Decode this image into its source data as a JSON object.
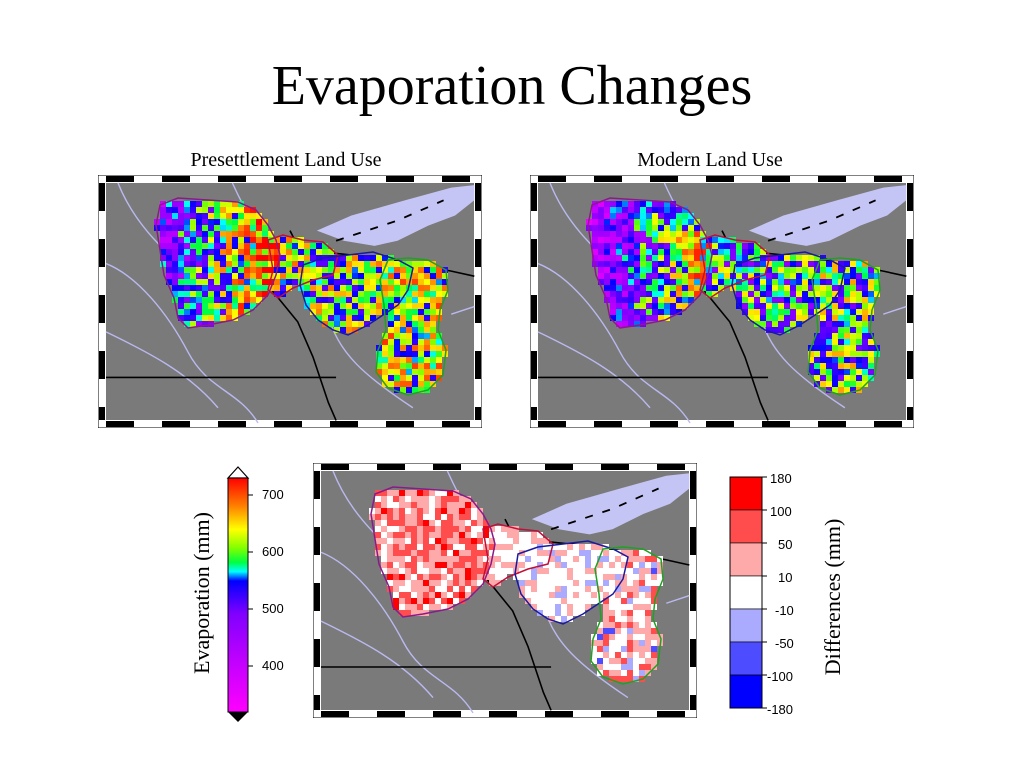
{
  "title": "Evaporation Changes",
  "maps": {
    "presettlement": {
      "label": "Presettlement Land Use"
    },
    "modern": {
      "label": "Modern Land Use"
    },
    "difference": {
      "label": ""
    }
  },
  "evap_colorbar": {
    "label": "Evaporation (mm)",
    "ticks": [
      "700",
      "600",
      "500",
      "400"
    ]
  },
  "diff_colorbar": {
    "label": "Differences (mm)",
    "ticks": [
      "180",
      "100",
      "50",
      "10",
      "-10",
      "-50",
      "-100",
      "-180"
    ],
    "colors": [
      "#ff0000",
      "#ff4d4d",
      "#ffaaaa",
      "#ffffff",
      "#aaaaff",
      "#4d4dff",
      "#0000ff"
    ]
  },
  "colors": {
    "land": "#7a7a7a",
    "lake": "#c5c5f5",
    "river": "#b9b9f0",
    "border": "#000000",
    "basin_red": "#c0103a",
    "basin_purple": "#8a1a8a",
    "basin_blue": "#1a1aa0",
    "basin_green": "#22a022"
  }
}
